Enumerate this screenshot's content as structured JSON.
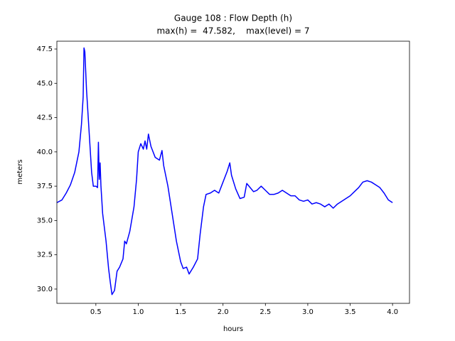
{
  "chart_data": {
    "type": "line",
    "title": [
      "Gauge 108 : Flow Depth (h)",
      "max(h) =  47.582,    max(level) = 7"
    ],
    "xlabel": "hours",
    "ylabel": "meters",
    "color": "#0000ff",
    "xlim": [
      0.04,
      4.2
    ],
    "ylim": [
      28.96,
      48.07
    ],
    "xticks": [
      0.5,
      {
        "value": 1,
        "label": "1.0"
      },
      1.5,
      {
        "value": 2,
        "label": "2.0"
      },
      2.5,
      {
        "value": 3,
        "label": "3.0"
      },
      3.5,
      {
        "value": 4,
        "label": "4.0"
      }
    ],
    "yticks": [
      {
        "value": 30,
        "label": "30.0"
      },
      32.5,
      {
        "value": 35,
        "label": "35.0"
      },
      37.5,
      {
        "value": 40,
        "label": "40.0"
      },
      42.5,
      {
        "value": 45,
        "label": "45.0"
      },
      47.5
    ],
    "x": [
      0.04,
      0.1,
      0.15,
      0.2,
      0.25,
      0.3,
      0.33,
      0.35,
      0.36,
      0.37,
      0.39,
      0.42,
      0.45,
      0.47,
      0.5,
      0.52,
      0.53,
      0.54,
      0.55,
      0.56,
      0.58,
      0.62,
      0.65,
      0.67,
      0.69,
      0.72,
      0.75,
      0.78,
      0.82,
      0.84,
      0.86,
      0.9,
      0.95,
      0.98,
      1.0,
      1.03,
      1.06,
      1.08,
      1.1,
      1.12,
      1.15,
      1.2,
      1.25,
      1.28,
      1.3,
      1.35,
      1.4,
      1.45,
      1.5,
      1.53,
      1.57,
      1.6,
      1.65,
      1.7,
      1.73,
      1.77,
      1.8,
      1.85,
      1.9,
      1.95,
      2.0,
      2.05,
      2.08,
      2.1,
      2.15,
      2.2,
      2.25,
      2.28,
      2.32,
      2.36,
      2.4,
      2.45,
      2.5,
      2.55,
      2.6,
      2.65,
      2.7,
      2.75,
      2.8,
      2.85,
      2.9,
      2.95,
      3.0,
      3.05,
      3.1,
      3.15,
      3.2,
      3.25,
      3.3,
      3.35,
      3.4,
      3.45,
      3.5,
      3.55,
      3.6,
      3.65,
      3.7,
      3.75,
      3.8,
      3.85,
      3.9,
      3.95,
      4.0
    ],
    "values": [
      36.3,
      36.5,
      37.0,
      37.6,
      38.5,
      40.0,
      42,
      44,
      47.58,
      47.3,
      44.5,
      41.5,
      38.5,
      37.5,
      37.5,
      37.4,
      40.7,
      38.0,
      39.2,
      37.5,
      35.5,
      33.5,
      31.5,
      30.5,
      29.6,
      29.9,
      31.3,
      31.6,
      32.2,
      33.5,
      33.3,
      34.2,
      36.0,
      38.0,
      40.0,
      40.6,
      40.2,
      40.8,
      40.2,
      41.3,
      40.4,
      39.6,
      39.4,
      40.1,
      39.0,
      37.5,
      35.5,
      33.5,
      32.0,
      31.5,
      31.6,
      31.1,
      31.6,
      32.2,
      34,
      36.0,
      36.9,
      37.0,
      37.2,
      37.0,
      37.8,
      38.6,
      39.2,
      38.3,
      37.3,
      36.6,
      36.7,
      37.7,
      37.4,
      37.1,
      37.2,
      37.5,
      37.2,
      36.9,
      36.9,
      37.0,
      37.2,
      37.0,
      36.8,
      36.8,
      36.5,
      36.4,
      36.5,
      36.2,
      36.3,
      36.2,
      36.0,
      36.2,
      35.9,
      36.2,
      36.4,
      36.6,
      36.8,
      37.1,
      37.4,
      37.8,
      37.9,
      37.8,
      37.6,
      37.4,
      37.0,
      36.5,
      36.3
    ]
  }
}
